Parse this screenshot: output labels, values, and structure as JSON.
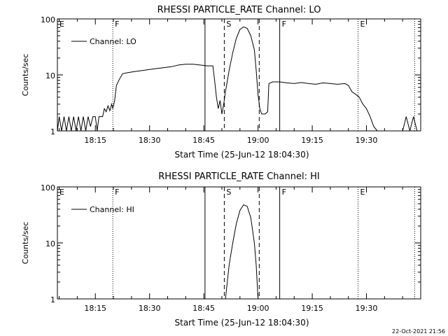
{
  "footer": {
    "timestamp": "22-Oct-2021 21:56"
  },
  "chart_data": [
    {
      "type": "line",
      "title": "RHESSI PARTICLE_RATE Channel: LO",
      "xlabel": "Start Time (25-Jun-12 18:04:30)",
      "ylabel": "Counts/sec",
      "xlim": [
        "18:04:30",
        "19:45:00"
      ],
      "ylim": [
        1,
        100
      ],
      "yscale": "log",
      "x_ticks": [
        "18:15",
        "18:30",
        "18:45",
        "19:00",
        "19:15",
        "19:30"
      ],
      "y_ticks": [
        "1",
        "10",
        "100"
      ],
      "grid": false,
      "legend_position": "top-left",
      "series": [
        {
          "name": "Channel: LO",
          "points": [
            [
              "18:04:30",
              1.0
            ],
            [
              "18:05:00",
              1.8
            ],
            [
              "18:05:40",
              1.0
            ],
            [
              "18:06:20",
              1.8
            ],
            [
              "18:07:00",
              1.0
            ],
            [
              "18:07:40",
              1.8
            ],
            [
              "18:08:20",
              1.0
            ],
            [
              "18:09:00",
              1.8
            ],
            [
              "18:09:40",
              1.0
            ],
            [
              "18:10:20",
              1.8
            ],
            [
              "18:11:00",
              1.0
            ],
            [
              "18:11:40",
              1.8
            ],
            [
              "18:12:20",
              1.0
            ],
            [
              "18:13:00",
              1.8
            ],
            [
              "18:13:40",
              1.2
            ],
            [
              "18:14:20",
              1.8
            ],
            [
              "18:15:00",
              1.8
            ],
            [
              "18:15:30",
              1.0
            ],
            [
              "18:16:00",
              1.8
            ],
            [
              "18:17:00",
              1.8
            ],
            [
              "18:17:30",
              2.5
            ],
            [
              "18:18:00",
              2.2
            ],
            [
              "18:18:30",
              2.8
            ],
            [
              "18:19:00",
              2.3
            ],
            [
              "18:19:30",
              3.0
            ],
            [
              "18:19:50",
              2.5
            ],
            [
              "18:20:20",
              3.5
            ],
            [
              "18:20:50",
              6.5
            ],
            [
              "18:21:30",
              8.0
            ],
            [
              "18:22:30",
              10.5
            ],
            [
              "18:24:00",
              11.0
            ],
            [
              "18:26:00",
              11.5
            ],
            [
              "18:28:00",
              12.0
            ],
            [
              "18:30:00",
              12.5
            ],
            [
              "18:32:00",
              13.0
            ],
            [
              "18:34:00",
              13.5
            ],
            [
              "18:36:00",
              14.0
            ],
            [
              "18:38:00",
              15.0
            ],
            [
              "18:40:00",
              15.5
            ],
            [
              "18:42:00",
              15.5
            ],
            [
              "18:44:00",
              15.0
            ],
            [
              "18:46:00",
              14.5
            ],
            [
              "18:47:30",
              14.5
            ],
            [
              "18:48:00",
              8.0
            ],
            [
              "18:48:30",
              4.0
            ],
            [
              "18:49:00",
              2.5
            ],
            [
              "18:49:30",
              3.5
            ],
            [
              "18:50:00",
              2.0
            ],
            [
              "18:50:30",
              3.0
            ],
            [
              "18:51:00",
              5.0
            ],
            [
              "18:52:00",
              12.0
            ],
            [
              "18:53:00",
              25.0
            ],
            [
              "18:54:00",
              45.0
            ],
            [
              "18:55:00",
              65.0
            ],
            [
              "18:56:00",
              72.0
            ],
            [
              "18:57:00",
              68.0
            ],
            [
              "18:58:00",
              50.0
            ],
            [
              "18:59:00",
              28.0
            ],
            [
              "18:59:30",
              12.0
            ],
            [
              "19:00:00",
              4.5
            ],
            [
              "19:00:30",
              2.5
            ],
            [
              "19:01:00",
              2.0
            ],
            [
              "19:02:00",
              2.0
            ],
            [
              "19:02:40",
              2.2
            ],
            [
              "19:03:00",
              7.0
            ],
            [
              "19:04:00",
              7.5
            ],
            [
              "19:06:00",
              7.5
            ],
            [
              "19:08:00",
              7.2
            ],
            [
              "19:10:00",
              7.0
            ],
            [
              "19:12:00",
              7.3
            ],
            [
              "19:14:00",
              7.0
            ],
            [
              "19:16:00",
              6.8
            ],
            [
              "19:18:00",
              7.2
            ],
            [
              "19:20:00",
              7.0
            ],
            [
              "19:22:00",
              6.8
            ],
            [
              "19:24:00",
              7.0
            ],
            [
              "19:25:00",
              6.5
            ],
            [
              "19:26:00",
              5.0
            ],
            [
              "19:27:00",
              4.5
            ],
            [
              "19:28:00",
              4.0
            ],
            [
              "19:29:00",
              3.0
            ],
            [
              "19:30:00",
              2.5
            ],
            [
              "19:31:00",
              1.8
            ],
            [
              "19:32:00",
              1.2
            ],
            [
              "19:33:00",
              1.0
            ],
            [
              "19:35:00",
              1.0
            ],
            [
              "19:38:00",
              1.0
            ],
            [
              "19:40:00",
              1.0
            ],
            [
              "19:41:00",
              1.8
            ],
            [
              "19:42:00",
              1.0
            ],
            [
              "19:43:00",
              1.8
            ],
            [
              "19:44:00",
              1.0
            ]
          ]
        }
      ],
      "markers": [
        {
          "time": "18:04:30",
          "label": "E",
          "style": "dotted"
        },
        {
          "time": "18:19:50",
          "label": "F",
          "style": "dotted"
        },
        {
          "time": "18:45:20",
          "label": "",
          "style": "solid"
        },
        {
          "time": "18:50:40",
          "label": "S",
          "style": "dashed"
        },
        {
          "time": "19:00:20",
          "label": "",
          "style": "dashed"
        },
        {
          "time": "19:06:00",
          "label": "F",
          "style": "solid"
        },
        {
          "time": "19:27:40",
          "label": "E",
          "style": "dotted"
        },
        {
          "time": "19:43:20",
          "label": "",
          "style": "dotted"
        }
      ]
    },
    {
      "type": "line",
      "title": "RHESSI PARTICLE_RATE Channel: HI",
      "xlabel": "Start Time (25-Jun-12 18:04:30)",
      "ylabel": "Counts/sec",
      "xlim": [
        "18:04:30",
        "19:45:00"
      ],
      "ylim": [
        1,
        100
      ],
      "yscale": "log",
      "x_ticks": [
        "18:15",
        "18:30",
        "18:45",
        "19:00",
        "19:15",
        "19:30"
      ],
      "y_ticks": [
        "1",
        "10",
        "100"
      ],
      "grid": false,
      "legend_position": "top-left",
      "series": [
        {
          "name": "Channel: HI",
          "points": [
            [
              "18:51:00",
              1.0
            ],
            [
              "18:51:30",
              2.0
            ],
            [
              "18:52:00",
              4.0
            ],
            [
              "18:53:00",
              10.0
            ],
            [
              "18:54:00",
              22.0
            ],
            [
              "18:55:00",
              38.0
            ],
            [
              "18:56:00",
              48.0
            ],
            [
              "18:57:00",
              45.0
            ],
            [
              "18:58:00",
              28.0
            ],
            [
              "18:59:00",
              10.0
            ],
            [
              "18:59:30",
              4.0
            ],
            [
              "19:00:00",
              1.0
            ]
          ]
        }
      ],
      "markers": [
        {
          "time": "18:04:30",
          "label": "E",
          "style": "dotted"
        },
        {
          "time": "18:19:50",
          "label": "F",
          "style": "dotted"
        },
        {
          "time": "18:45:20",
          "label": "",
          "style": "solid"
        },
        {
          "time": "18:50:40",
          "label": "S",
          "style": "dashed"
        },
        {
          "time": "19:00:20",
          "label": "",
          "style": "dashed"
        },
        {
          "time": "19:06:00",
          "label": "F",
          "style": "solid"
        },
        {
          "time": "19:27:40",
          "label": "E",
          "style": "dotted"
        },
        {
          "time": "19:43:20",
          "label": "",
          "style": "dotted"
        }
      ]
    }
  ]
}
